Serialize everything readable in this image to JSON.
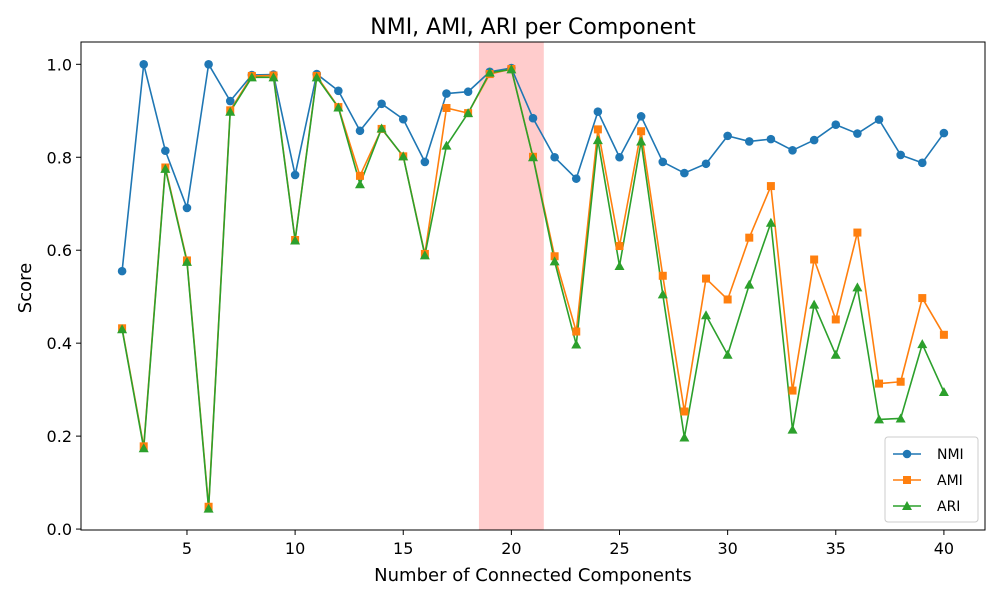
{
  "chart_data": {
    "type": "line",
    "title": "NMI, AMI, ARI per Component",
    "xlabel": "Number of Connected Components",
    "ylabel": "Score",
    "xlim": [
      0.1,
      41.9
    ],
    "ylim": [
      -0.002,
      1.048
    ],
    "xticks": [
      5,
      10,
      15,
      20,
      25,
      30,
      35,
      40
    ],
    "yticks": [
      0.0,
      0.2,
      0.4,
      0.6,
      0.8,
      1.0
    ],
    "ytick_labels": [
      "0.0",
      "0.2",
      "0.4",
      "0.6",
      "0.8",
      "1.0"
    ],
    "highlight_span": {
      "x": [
        18.5,
        21.5
      ],
      "color": "#ff9999"
    },
    "grid": false,
    "legend_position": "lower-right",
    "x": [
      2,
      3,
      4,
      5,
      6,
      7,
      8,
      9,
      10,
      11,
      12,
      13,
      14,
      15,
      16,
      17,
      18,
      19,
      20,
      21,
      22,
      23,
      24,
      25,
      26,
      27,
      28,
      29,
      30,
      31,
      32,
      33,
      34,
      35,
      36,
      37,
      38,
      39,
      40
    ],
    "series": [
      {
        "name": "NMI",
        "color": "#1f77b4",
        "marker": "circle",
        "values": [
          0.555,
          1.0,
          0.814,
          0.691,
          1.0,
          0.921,
          0.977,
          0.978,
          0.762,
          0.979,
          0.943,
          0.857,
          0.915,
          0.882,
          0.79,
          0.937,
          0.941,
          0.984,
          0.992,
          0.884,
          0.8,
          0.754,
          0.898,
          0.8,
          0.888,
          0.79,
          0.766,
          0.786,
          0.846,
          0.834,
          0.839,
          0.815,
          0.837,
          0.87,
          0.851,
          0.881,
          0.805,
          0.788,
          0.852
        ]
      },
      {
        "name": "AMI",
        "color": "#ff7f0e",
        "marker": "square",
        "values": [
          0.432,
          0.178,
          0.778,
          0.578,
          0.048,
          0.901,
          0.975,
          0.976,
          0.622,
          0.975,
          0.908,
          0.76,
          0.861,
          0.802,
          0.592,
          0.906,
          0.895,
          0.979,
          0.99,
          0.801,
          0.587,
          0.425,
          0.86,
          0.609,
          0.856,
          0.545,
          0.253,
          0.539,
          0.494,
          0.627,
          0.738,
          0.298,
          0.58,
          0.451,
          0.638,
          0.313,
          0.317,
          0.497,
          0.418
        ]
      },
      {
        "name": "ARI",
        "color": "#2ca02c",
        "marker": "triangle",
        "values": [
          0.43,
          0.174,
          0.775,
          0.575,
          0.044,
          0.898,
          0.972,
          0.972,
          0.621,
          0.972,
          0.907,
          0.742,
          0.862,
          0.802,
          0.589,
          0.825,
          0.895,
          0.982,
          0.989,
          0.8,
          0.576,
          0.397,
          0.837,
          0.566,
          0.834,
          0.505,
          0.197,
          0.46,
          0.375,
          0.526,
          0.659,
          0.214,
          0.483,
          0.375,
          0.52,
          0.236,
          0.238,
          0.398,
          0.295
        ]
      }
    ]
  }
}
